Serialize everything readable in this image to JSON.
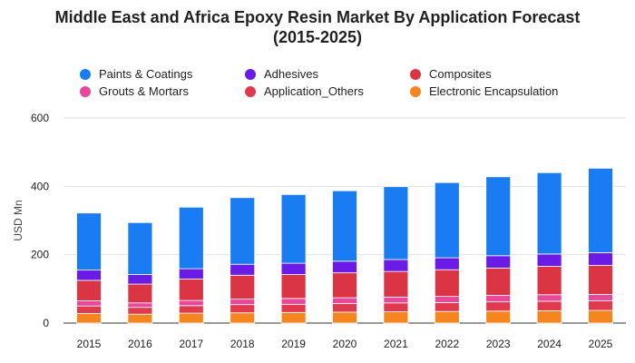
{
  "chart_data": {
    "type": "bar",
    "stacked": true,
    "title_line1": "Middle East and Africa Epoxy Resin Market By Application Forecast",
    "title_line2": "(2015-2025)",
    "xlabel": "",
    "ylabel": "USD Mn",
    "ylim": [
      0,
      600
    ],
    "yticks": [
      0,
      200,
      400,
      600
    ],
    "grid": true,
    "legend_position": "top",
    "categories": [
      "2015",
      "2016",
      "2017",
      "2018",
      "2019",
      "2020",
      "2021",
      "2022",
      "2023",
      "2024",
      "2025"
    ],
    "series": [
      {
        "name": "Electronic Encapsulation",
        "color": "#f5861f",
        "values": [
          28,
          26,
          29,
          30,
          31,
          32,
          33,
          34,
          35,
          36,
          37
        ]
      },
      {
        "name": "Application_Others",
        "color": "#e03a4e",
        "values": [
          22,
          20,
          22,
          24,
          24,
          25,
          26,
          26,
          27,
          28,
          28
        ]
      },
      {
        "name": "Grouts & Mortars",
        "color": "#e8479a",
        "values": [
          15,
          13,
          15,
          16,
          17,
          17,
          17,
          18,
          19,
          19,
          19
        ]
      },
      {
        "name": "Composites",
        "color": "#db3545",
        "values": [
          60,
          55,
          63,
          70,
          70,
          73,
          75,
          78,
          80,
          83,
          85
        ]
      },
      {
        "name": "Adhesives",
        "color": "#6a1be5",
        "values": [
          30,
          28,
          30,
          32,
          33,
          34,
          35,
          35,
          36,
          36,
          37
        ]
      },
      {
        "name": "Paints & Coatings",
        "color": "#1a7cf2",
        "values": [
          167,
          152,
          180,
          195,
          201,
          206,
          213,
          220,
          231,
          238,
          247
        ]
      }
    ]
  },
  "legend": {
    "items": [
      {
        "label": "Paints & Coatings",
        "color": "#1a7cf2"
      },
      {
        "label": "Adhesives",
        "color": "#6a1be5"
      },
      {
        "label": "Composites",
        "color": "#db3545"
      },
      {
        "label": "Grouts & Mortars",
        "color": "#e8479a"
      },
      {
        "label": "Application_Others",
        "color": "#e03a4e"
      },
      {
        "label": "Electronic Encapsulation",
        "color": "#f5861f"
      }
    ]
  }
}
